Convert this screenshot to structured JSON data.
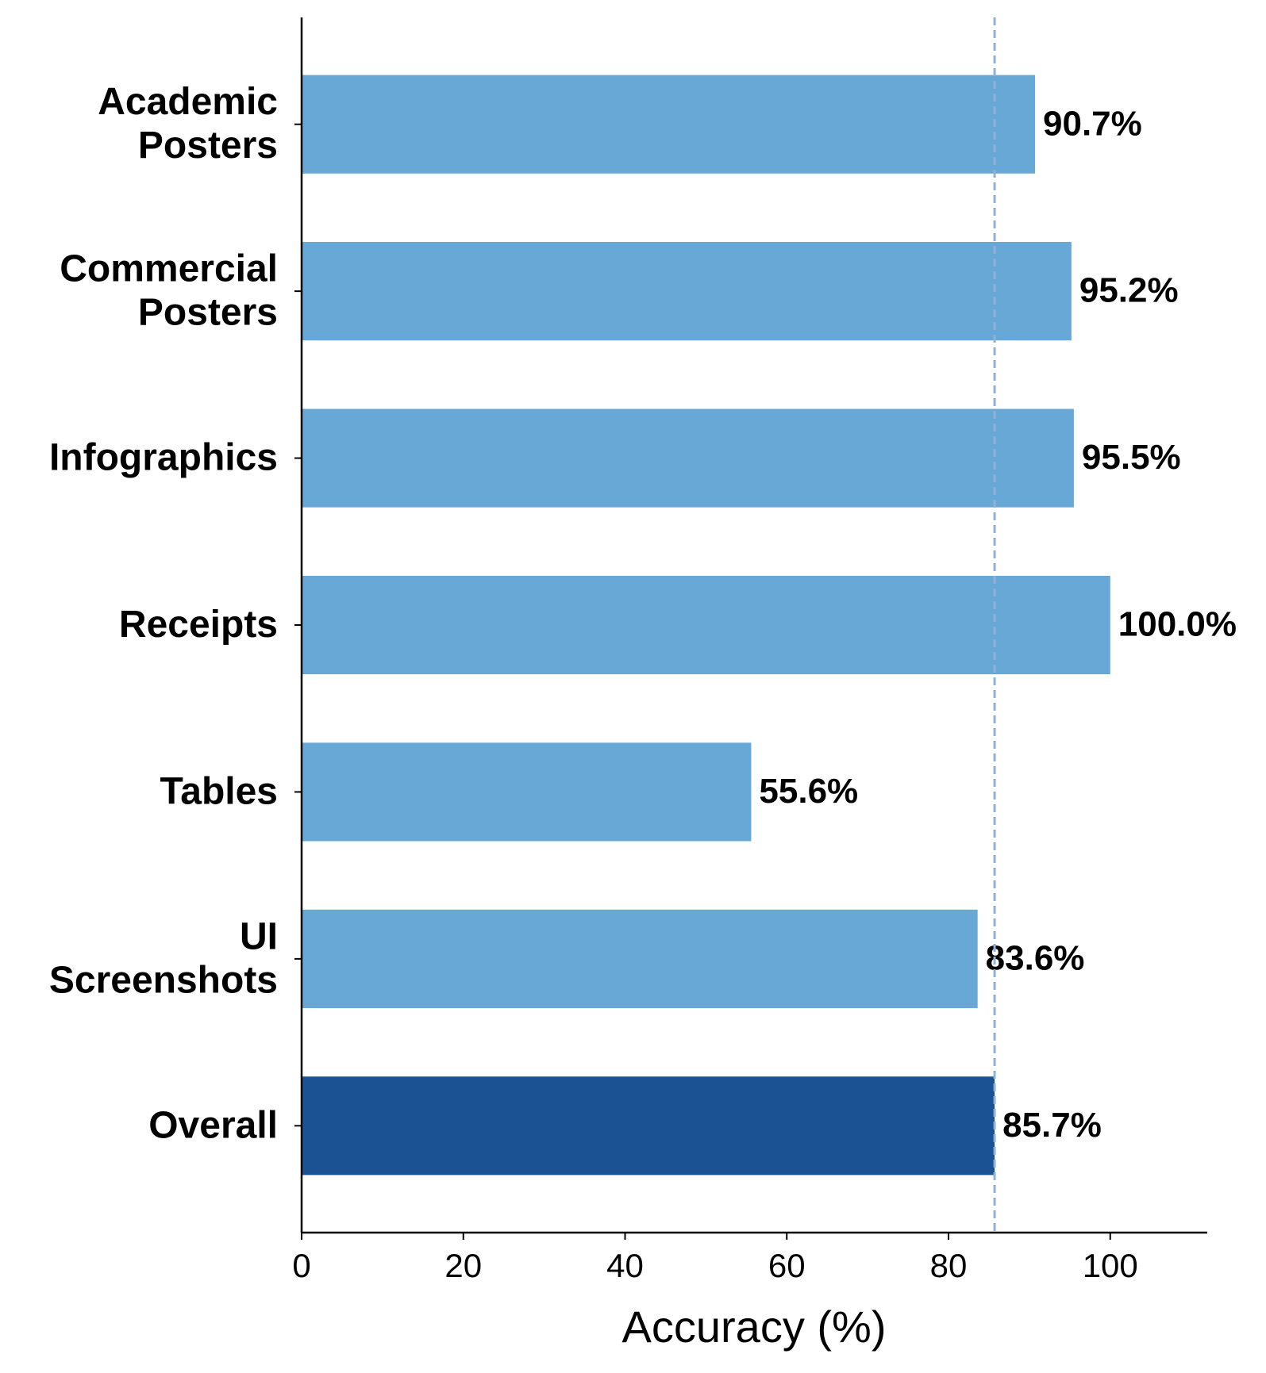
{
  "chart_data": {
    "type": "barh",
    "categories": [
      "Academic Posters",
      "Commercial Posters",
      "Infographics",
      "Receipts",
      "Tables",
      "UI Screenshots",
      "Overall"
    ],
    "values": [
      90.7,
      95.2,
      95.5,
      100.0,
      55.6,
      83.6,
      85.7
    ],
    "value_labels": [
      "90.7%",
      "95.2%",
      "95.5%",
      "100.0%",
      "55.6%",
      "83.6%",
      "85.7%"
    ],
    "colors": [
      "#67a8d6",
      "#67a8d6",
      "#67a8d6",
      "#67a8d6",
      "#67a8d6",
      "#67a8d6",
      "#1a5294"
    ],
    "xlabel": "Accuracy (%)",
    "xlim": [
      0,
      112
    ],
    "xticks": [
      0,
      20,
      40,
      60,
      80,
      100
    ]
  }
}
